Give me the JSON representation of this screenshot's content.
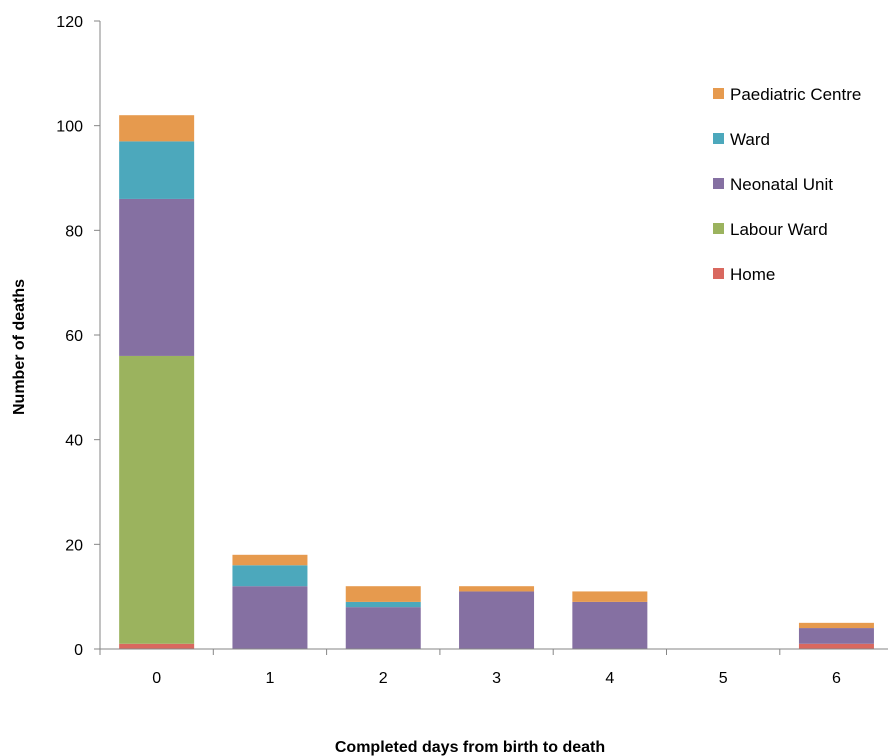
{
  "chart_data": {
    "type": "bar",
    "stacked": true,
    "title": "",
    "xlabel": "Completed days from birth to death",
    "ylabel": "Number of deaths",
    "categories": [
      "0",
      "1",
      "2",
      "3",
      "4",
      "5",
      "6"
    ],
    "ylim": [
      0,
      120
    ],
    "yticks": [
      0,
      20,
      40,
      60,
      80,
      100,
      120
    ],
    "grid": false,
    "legend_position": "top-right",
    "series": [
      {
        "name": "Home",
        "color": "#D9685F",
        "values": [
          1,
          0,
          0,
          0,
          0,
          0,
          1
        ]
      },
      {
        "name": "Labour Ward",
        "color": "#9BB35E",
        "values": [
          55,
          0,
          0,
          0,
          0,
          0,
          0
        ]
      },
      {
        "name": "Neonatal Unit",
        "color": "#8570A2",
        "values": [
          30,
          12,
          8,
          11,
          9,
          0,
          3
        ]
      },
      {
        "name": "Ward",
        "color": "#4CA8BC",
        "values": [
          11,
          4,
          1,
          0,
          0,
          0,
          0
        ]
      },
      {
        "name": "Paediatric Centre",
        "color": "#E69A4E",
        "values": [
          5,
          2,
          3,
          1,
          2,
          0,
          1
        ]
      }
    ],
    "legend_order": [
      "Paediatric Centre",
      "Ward",
      "Neonatal Unit",
      "Labour Ward",
      "Home"
    ]
  }
}
